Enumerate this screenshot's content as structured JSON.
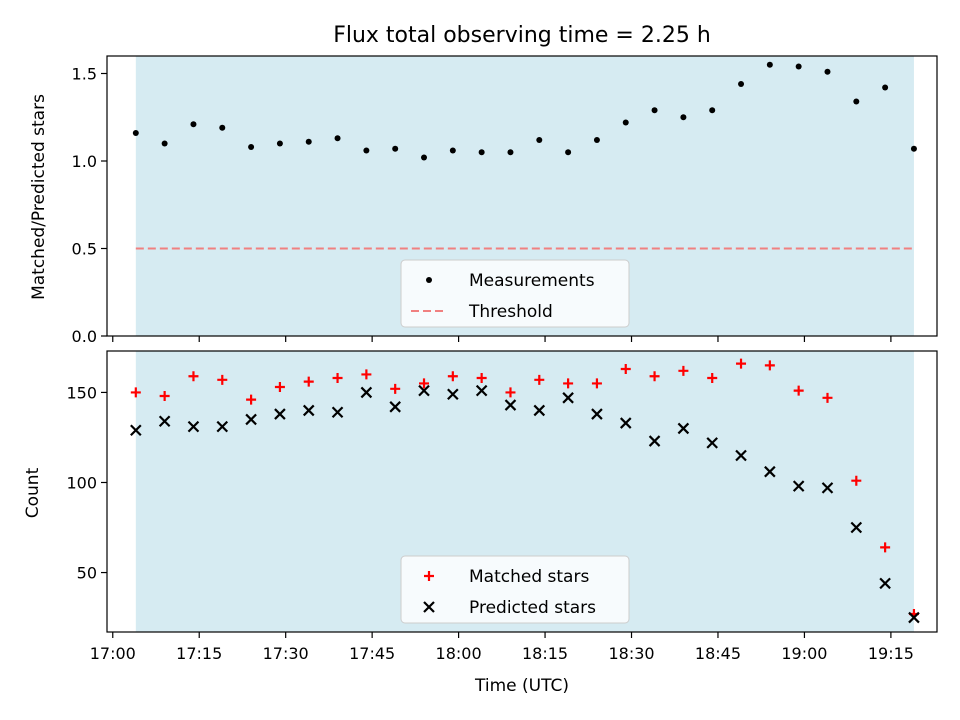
{
  "figure": {
    "title": "Flux total observing time = 2.25 h"
  },
  "colors": {
    "shade": "#add8e6",
    "measurement": "#000000",
    "threshold": "#f08080",
    "matched": "#ff0000",
    "predicted": "#000000"
  },
  "chart_data": [
    {
      "type": "scatter",
      "panel": "top",
      "title": "Flux total observing time = 2.25 h",
      "xlabel": "",
      "ylabel": "Matched/Predicted stars",
      "xlim": [
        "16:59",
        "19:23"
      ],
      "ylim": [
        0,
        1.6
      ],
      "y_ticks": [
        "0.0",
        "0.5",
        "1.0",
        "1.5"
      ],
      "shaded_interval": [
        "17:04",
        "19:19"
      ],
      "legend_position": "lower center",
      "legend": [
        "Measurements",
        "Threshold"
      ],
      "series": [
        {
          "name": "Measurements",
          "marker": "dot",
          "x": [
            "17:04",
            "17:09",
            "17:14",
            "17:19",
            "17:24",
            "17:29",
            "17:34",
            "17:39",
            "17:44",
            "17:49",
            "17:54",
            "17:59",
            "18:04",
            "18:09",
            "18:14",
            "18:19",
            "18:24",
            "18:29",
            "18:34",
            "18:39",
            "18:44",
            "18:49",
            "18:54",
            "18:59",
            "19:04",
            "19:09",
            "19:14",
            "19:19"
          ],
          "y": [
            1.16,
            1.1,
            1.21,
            1.19,
            1.08,
            1.1,
            1.11,
            1.13,
            1.06,
            1.07,
            1.02,
            1.06,
            1.05,
            1.05,
            1.12,
            1.05,
            1.12,
            1.22,
            1.29,
            1.25,
            1.29,
            1.44,
            1.55,
            1.54,
            1.51,
            1.34,
            1.42,
            1.07
          ]
        },
        {
          "name": "Threshold",
          "type": "hline",
          "style": "dashed",
          "y": 0.5,
          "x_range": [
            "17:04",
            "19:19"
          ]
        }
      ]
    },
    {
      "type": "scatter",
      "panel": "bottom",
      "xlabel": "Time (UTC)",
      "ylabel": "Count",
      "xlim": [
        "16:59",
        "19:23"
      ],
      "ylim": [
        17,
        173
      ],
      "x_ticks": [
        "17:00",
        "17:15",
        "17:30",
        "17:45",
        "18:00",
        "18:15",
        "18:30",
        "18:45",
        "19:00",
        "19:15"
      ],
      "y_ticks": [
        "50",
        "100",
        "150"
      ],
      "shaded_interval": [
        "17:04",
        "19:19"
      ],
      "legend_position": "lower center",
      "legend": [
        "Matched stars",
        "Predicted stars"
      ],
      "series": [
        {
          "name": "Matched stars",
          "marker": "plus",
          "x": [
            "17:04",
            "17:09",
            "17:14",
            "17:19",
            "17:24",
            "17:29",
            "17:34",
            "17:39",
            "17:44",
            "17:49",
            "17:54",
            "17:59",
            "18:04",
            "18:09",
            "18:14",
            "18:19",
            "18:24",
            "18:29",
            "18:34",
            "18:39",
            "18:44",
            "18:49",
            "18:54",
            "18:59",
            "19:04",
            "19:09",
            "19:14",
            "19:19"
          ],
          "y": [
            150,
            148,
            159,
            157,
            146,
            153,
            156,
            158,
            160,
            152,
            155,
            159,
            158,
            150,
            157,
            155,
            155,
            163,
            159,
            162,
            158,
            166,
            165,
            151,
            147,
            101,
            64,
            27
          ]
        },
        {
          "name": "Predicted stars",
          "marker": "x",
          "x": [
            "17:04",
            "17:09",
            "17:14",
            "17:19",
            "17:24",
            "17:29",
            "17:34",
            "17:39",
            "17:44",
            "17:49",
            "17:54",
            "17:59",
            "18:04",
            "18:09",
            "18:14",
            "18:19",
            "18:24",
            "18:29",
            "18:34",
            "18:39",
            "18:44",
            "18:49",
            "18:54",
            "18:59",
            "19:04",
            "19:09",
            "19:14",
            "19:19"
          ],
          "y": [
            129,
            134,
            131,
            131,
            135,
            138,
            140,
            139,
            150,
            142,
            151,
            149,
            151,
            143,
            140,
            147,
            138,
            133,
            123,
            130,
            122,
            115,
            106,
            98,
            97,
            75,
            44,
            25
          ]
        }
      ]
    }
  ]
}
